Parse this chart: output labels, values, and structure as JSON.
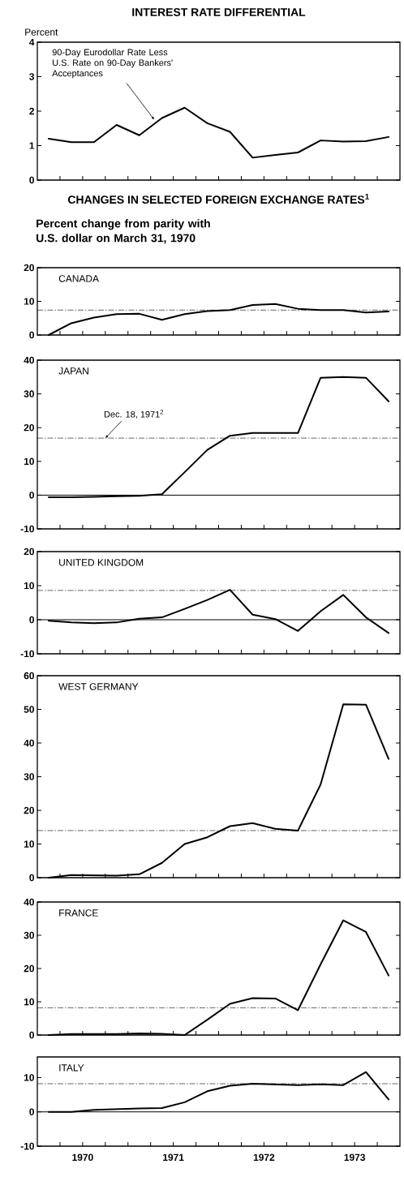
{
  "chart_data": [
    {
      "type": "line",
      "title": "INTEREST RATE DIFFERENTIAL",
      "ylabel": "Percent",
      "annotations": [
        {
          "text": "90-Day Eurodollar Rate Less U.S. Rate on 90-Day Bankers' Acceptances",
          "x": 1971.29,
          "y": 1.75
        }
      ],
      "x": [
        1970.125,
        1970.375,
        1970.625,
        1970.875,
        1971.125,
        1971.375,
        1971.625,
        1971.875,
        1972.125,
        1972.375,
        1972.625,
        1972.875,
        1973.125,
        1973.375,
        1973.625,
        1973.875
      ],
      "series": [
        {
          "color": "#000000",
          "values": [
            1.2,
            1.1,
            1.1,
            1.6,
            1.3,
            1.8,
            2.1,
            1.65,
            1.4,
            0.65,
            0.73,
            0.8,
            1.15,
            1.12,
            1.13,
            1.25
          ]
        }
      ],
      "xlim": [
        1970,
        1974
      ],
      "ylim": [
        0,
        4
      ],
      "yticks": [
        0,
        1,
        2,
        3,
        4
      ],
      "tick_labels": "y",
      "xticks": [
        {
          "value": 1970.25,
          "label": null
        },
        {
          "value": 1970.5,
          "label": null
        },
        {
          "value": 1970.75,
          "label": null
        },
        {
          "value": 1971,
          "label": null
        },
        {
          "value": 1971.25,
          "label": null
        },
        {
          "value": 1971.5,
          "label": null
        },
        {
          "value": 1971.75,
          "label": null
        },
        {
          "value": 1972,
          "label": null
        },
        {
          "value": 1972.25,
          "label": null
        },
        {
          "value": 1972.5,
          "label": null
        },
        {
          "value": 1972.75,
          "label": null
        },
        {
          "value": 1973,
          "label": null
        },
        {
          "value": 1973.25,
          "label": null
        },
        {
          "value": 1973.5,
          "label": null
        },
        {
          "value": 1973.75,
          "label": null
        }
      ]
    },
    {
      "type": "line",
      "title": "CHANGES IN SELECTED FOREIGN EXCHANGE RATES$^{1}$",
      "subtitle": "Percent change from parity with U.S. dollar on March 31, 1970",
      "annotations": [
        "CANADA"
      ],
      "x": [
        1970.125,
        1970.375,
        1970.625,
        1970.875,
        1971.125,
        1971.375,
        1971.625,
        1971.875,
        1972.125,
        1972.375,
        1972.625,
        1972.875,
        1973.125,
        1973.375,
        1973.625,
        1973.875
      ],
      "series": [
        {
          "color": "#000000",
          "values": [
            0,
            3.5,
            5.2,
            6.2,
            6.3,
            4.5,
            6.2,
            7.1,
            7.4,
            8.9,
            9.2,
            7.8,
            7.4,
            7.4,
            6.7,
            7.0
          ]
        }
      ],
      "ref_lines": [
        {
          "axis": "y",
          "value": 7.4,
          "color": "#000000",
          "line_style": "dashed"
        }
      ],
      "xlim": [
        1970,
        1974
      ],
      "ylim": [
        0,
        20
      ],
      "yticks": [
        0,
        10,
        20
      ],
      "tick_labels": "y",
      "xticks": [
        {
          "value": 1970.25,
          "label": null
        },
        {
          "value": 1970.5,
          "label": null
        },
        {
          "value": 1970.75,
          "label": null
        },
        {
          "value": 1971,
          "label": null
        },
        {
          "value": 1971.25,
          "label": null
        },
        {
          "value": 1971.5,
          "label": null
        },
        {
          "value": 1971.75,
          "label": null
        },
        {
          "value": 1972,
          "label": null
        },
        {
          "value": 1972.25,
          "label": null
        },
        {
          "value": 1972.5,
          "label": null
        },
        {
          "value": 1972.75,
          "label": null
        },
        {
          "value": 1973,
          "label": null
        },
        {
          "value": 1973.25,
          "label": null
        },
        {
          "value": 1973.5,
          "label": null
        },
        {
          "value": 1973.75,
          "label": null
        }
      ]
    },
    {
      "type": "line",
      "annotations": [
        "JAPAN"
      ],
      "x": [
        1970.125,
        1970.375,
        1970.625,
        1970.875,
        1971.125,
        1971.375,
        1971.625,
        1971.875,
        1972.125,
        1972.375,
        1972.625,
        1972.875,
        1973.125,
        1973.375,
        1973.625,
        1973.875
      ],
      "series": [
        {
          "color": "#000000",
          "values": [
            -0.6,
            -0.6,
            -0.5,
            -0.3,
            -0.2,
            0.3,
            6.8,
            13.4,
            17.6,
            18.4,
            18.4,
            18.4,
            34.8,
            35.0,
            34.8,
            27.8
          ]
        }
      ],
      "ref_lines": [
        {
          "axis": "y",
          "value": 0,
          "color": "#000000",
          "line_style": "solid"
        },
        {
          "axis": "y",
          "value": 16.9,
          "label": "Dec. 18, 1971$^{2}$",
          "color": "#000000",
          "line_style": "dashed"
        }
      ],
      "xlim": [
        1970,
        1974
      ],
      "ylim": [
        -10,
        40
      ],
      "yticks": [
        -10,
        0,
        10,
        20,
        30,
        40
      ],
      "tick_labels": "y",
      "xticks": [
        {
          "value": 1970.25,
          "label": null
        },
        {
          "value": 1970.5,
          "label": null
        },
        {
          "value": 1970.75,
          "label": null
        },
        {
          "value": 1971,
          "label": null
        },
        {
          "value": 1971.25,
          "label": null
        },
        {
          "value": 1971.5,
          "label": null
        },
        {
          "value": 1971.75,
          "label": null
        },
        {
          "value": 1972,
          "label": null
        },
        {
          "value": 1972.25,
          "label": null
        },
        {
          "value": 1972.5,
          "label": null
        },
        {
          "value": 1972.75,
          "label": null
        },
        {
          "value": 1973,
          "label": null
        },
        {
          "value": 1973.25,
          "label": null
        },
        {
          "value": 1973.5,
          "label": null
        },
        {
          "value": 1973.75,
          "label": null
        }
      ]
    },
    {
      "type": "line",
      "annotations": [
        "UNITED KINGDOM"
      ],
      "x": [
        1970.125,
        1970.375,
        1970.625,
        1970.875,
        1971.125,
        1971.375,
        1971.625,
        1971.875,
        1972.125,
        1972.375,
        1972.625,
        1972.875,
        1973.125,
        1973.375,
        1973.625,
        1973.875
      ],
      "series": [
        {
          "color": "#000000",
          "values": [
            -0.3,
            -0.8,
            -1.0,
            -0.8,
            0.3,
            0.7,
            3.2,
            5.8,
            8.8,
            1.5,
            0.2,
            -3.3,
            2.5,
            7.3,
            0.7,
            -3.9
          ]
        }
      ],
      "ref_lines": [
        {
          "axis": "y",
          "value": 0,
          "color": "#000000",
          "line_style": "solid"
        },
        {
          "axis": "y",
          "value": 8.6,
          "color": "#000000",
          "line_style": "dashed"
        }
      ],
      "xlim": [
        1970,
        1974
      ],
      "ylim": [
        -10,
        20
      ],
      "yticks": [
        -10,
        0,
        10,
        20
      ],
      "tick_labels": "y",
      "xticks": [
        {
          "value": 1970.25,
          "label": null
        },
        {
          "value": 1970.5,
          "label": null
        },
        {
          "value": 1970.75,
          "label": null
        },
        {
          "value": 1971,
          "label": null
        },
        {
          "value": 1971.25,
          "label": null
        },
        {
          "value": 1971.5,
          "label": null
        },
        {
          "value": 1971.75,
          "label": null
        },
        {
          "value": 1972,
          "label": null
        },
        {
          "value": 1972.25,
          "label": null
        },
        {
          "value": 1972.5,
          "label": null
        },
        {
          "value": 1972.75,
          "label": null
        },
        {
          "value": 1973,
          "label": null
        },
        {
          "value": 1973.25,
          "label": null
        },
        {
          "value": 1973.5,
          "label": null
        },
        {
          "value": 1973.75,
          "label": null
        }
      ]
    },
    {
      "type": "line",
      "annotations": [
        "WEST GERMANY"
      ],
      "x": [
        1970.125,
        1970.375,
        1970.625,
        1970.875,
        1971.125,
        1971.375,
        1971.625,
        1971.875,
        1972.125,
        1972.375,
        1972.625,
        1972.875,
        1973.125,
        1973.375,
        1973.625,
        1973.875
      ],
      "series": [
        {
          "color": "#000000",
          "values": [
            0,
            0.8,
            0.7,
            0.6,
            1.0,
            4.4,
            10.0,
            12.0,
            15.3,
            16.2,
            14.5,
            14.0,
            27.7,
            51.5,
            51.4,
            35.3
          ]
        }
      ],
      "ref_lines": [
        {
          "axis": "y",
          "value": 14,
          "color": "#000000",
          "line_style": "dashed"
        }
      ],
      "xlim": [
        1970,
        1974
      ],
      "ylim": [
        0,
        60
      ],
      "yticks": [
        0,
        10,
        20,
        30,
        40,
        50,
        60
      ],
      "tick_labels": "y",
      "xticks": [
        {
          "value": 1970.25,
          "label": null
        },
        {
          "value": 1970.5,
          "label": null
        },
        {
          "value": 1970.75,
          "label": null
        },
        {
          "value": 1971,
          "label": null
        },
        {
          "value": 1971.25,
          "label": null
        },
        {
          "value": 1971.5,
          "label": null
        },
        {
          "value": 1971.75,
          "label": null
        },
        {
          "value": 1972,
          "label": null
        },
        {
          "value": 1972.25,
          "label": null
        },
        {
          "value": 1972.5,
          "label": null
        },
        {
          "value": 1972.75,
          "label": null
        },
        {
          "value": 1973,
          "label": null
        },
        {
          "value": 1973.25,
          "label": null
        },
        {
          "value": 1973.5,
          "label": null
        },
        {
          "value": 1973.75,
          "label": null
        }
      ]
    },
    {
      "type": "line",
      "annotations": [
        "FRANCE"
      ],
      "x": [
        1970.125,
        1970.375,
        1970.625,
        1970.875,
        1971.125,
        1971.375,
        1971.625,
        1971.875,
        1972.125,
        1972.375,
        1972.625,
        1972.875,
        1973.125,
        1973.375,
        1973.625,
        1973.875
      ],
      "series": [
        {
          "color": "#000000",
          "values": [
            0,
            0.3,
            0.3,
            0.3,
            0.5,
            0.4,
            0,
            4.6,
            9.4,
            11.1,
            11.0,
            7.5,
            21.3,
            34.5,
            31.0,
            17.9
          ]
        }
      ],
      "ref_lines": [
        {
          "axis": "y",
          "value": 8.2,
          "color": "#000000",
          "line_style": "dashed"
        }
      ],
      "xlim": [
        1970,
        1974
      ],
      "ylim": [
        0,
        40
      ],
      "yticks": [
        0,
        10,
        20,
        30,
        40
      ],
      "tick_labels": "y",
      "xticks": [
        {
          "value": 1970.25,
          "label": null
        },
        {
          "value": 1970.5,
          "label": null
        },
        {
          "value": 1970.75,
          "label": null
        },
        {
          "value": 1971,
          "label": null
        },
        {
          "value": 1971.25,
          "label": null
        },
        {
          "value": 1971.5,
          "label": null
        },
        {
          "value": 1971.75,
          "label": null
        },
        {
          "value": 1972,
          "label": null
        },
        {
          "value": 1972.25,
          "label": null
        },
        {
          "value": 1972.5,
          "label": null
        },
        {
          "value": 1972.75,
          "label": null
        },
        {
          "value": 1973,
          "label": null
        },
        {
          "value": 1973.25,
          "label": null
        },
        {
          "value": 1973.5,
          "label": null
        },
        {
          "value": 1973.75,
          "label": null
        }
      ]
    },
    {
      "type": "line",
      "annotations": [
        "ITALY"
      ],
      "x": [
        1970.125,
        1970.375,
        1970.625,
        1970.875,
        1971.125,
        1971.375,
        1971.625,
        1971.875,
        1972.125,
        1972.375,
        1972.625,
        1972.875,
        1973.125,
        1973.375,
        1973.625,
        1973.875
      ],
      "series": [
        {
          "color": "#000000",
          "values": [
            0,
            0,
            0.6,
            0.8,
            1.0,
            1.1,
            2.8,
            6.0,
            7.6,
            8.2,
            8.0,
            7.8,
            8.0,
            7.8,
            11.6,
            3.6
          ]
        }
      ],
      "ref_lines": [
        {
          "axis": "y",
          "value": 0,
          "color": "#000000",
          "line_style": "solid"
        },
        {
          "axis": "y",
          "value": 8.2,
          "color": "#000000",
          "line_style": "dashed"
        }
      ],
      "xlim": [
        1970,
        1974
      ],
      "ylim": [
        -10,
        16
      ],
      "yticks": [
        -10,
        0,
        10
      ],
      "xticks": [
        {
          "value": 1970.25,
          "label": null
        },
        {
          "value": 1970.5,
          "label": "1970"
        },
        {
          "value": 1970.75,
          "label": null
        },
        {
          "value": 1971,
          "label": null
        },
        {
          "value": 1971.25,
          "label": null
        },
        {
          "value": 1971.5,
          "label": "1971"
        },
        {
          "value": 1971.75,
          "label": null
        },
        {
          "value": 1972,
          "label": null
        },
        {
          "value": 1972.25,
          "label": null
        },
        {
          "value": 1972.5,
          "label": "1972"
        },
        {
          "value": 1972.75,
          "label": null
        },
        {
          "value": 1973,
          "label": null
        },
        {
          "value": 1973.25,
          "label": null
        },
        {
          "value": 1973.5,
          "label": "1973"
        },
        {
          "value": 1973.75,
          "label": null
        }
      ]
    }
  ]
}
